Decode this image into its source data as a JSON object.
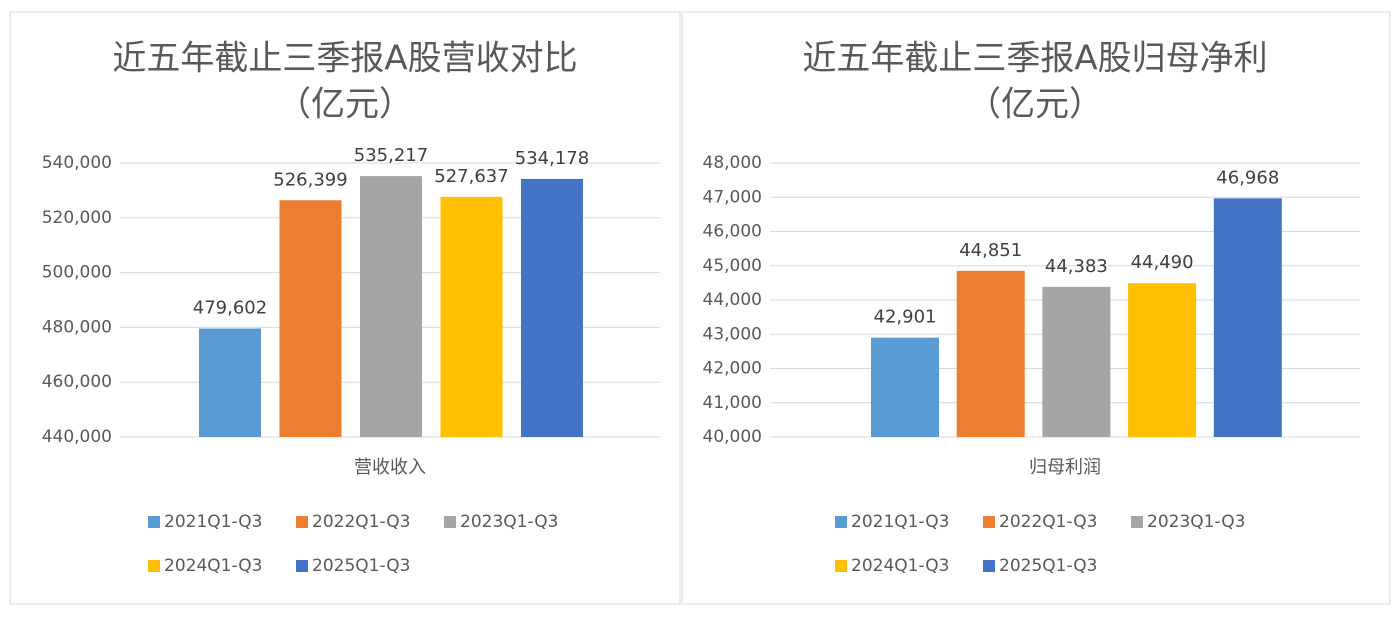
{
  "chart_data": [
    {
      "type": "bar",
      "title": "近五年截止三季报A股营收对比",
      "subtitle": "（亿元）",
      "categories": [
        "营收收入"
      ],
      "series": [
        {
          "name": "2021Q1-Q3",
          "color": "#5b9bd5",
          "values": [
            479602
          ],
          "value_labels": [
            "479,602"
          ]
        },
        {
          "name": "2022Q1-Q3",
          "color": "#ed7d31",
          "values": [
            526399
          ],
          "value_labels": [
            "526,399"
          ]
        },
        {
          "name": "2023Q1-Q3",
          "color": "#a5a5a5",
          "values": [
            535217
          ],
          "value_labels": [
            "535,217"
          ]
        },
        {
          "name": "2024Q1-Q3",
          "color": "#ffc000",
          "values": [
            527637
          ],
          "value_labels": [
            "527,637"
          ]
        },
        {
          "name": "2025Q1-Q3",
          "color": "#4472c4",
          "values": [
            534178
          ],
          "value_labels": [
            "534,178"
          ]
        }
      ],
      "ylim": [
        440000,
        540000
      ],
      "yticks": [
        {
          "value": 440000,
          "label": "440,000"
        },
        {
          "value": 460000,
          "label": "460,000"
        },
        {
          "value": 480000,
          "label": "480,000"
        },
        {
          "value": 500000,
          "label": "500,000"
        },
        {
          "value": 520000,
          "label": "520,000"
        },
        {
          "value": 540000,
          "label": "540,000"
        }
      ],
      "grid": true,
      "legend": "bottom"
    },
    {
      "type": "bar",
      "title": "近五年截止三季报A股归母净利",
      "subtitle": "（亿元）",
      "categories": [
        "归母利润"
      ],
      "series": [
        {
          "name": "2021Q1-Q3",
          "color": "#5b9bd5",
          "values": [
            42901
          ],
          "value_labels": [
            "42,901"
          ]
        },
        {
          "name": "2022Q1-Q3",
          "color": "#ed7d31",
          "values": [
            44851
          ],
          "value_labels": [
            "44,851"
          ]
        },
        {
          "name": "2023Q1-Q3",
          "color": "#a5a5a5",
          "values": [
            44383
          ],
          "value_labels": [
            "44,383"
          ]
        },
        {
          "name": "2024Q1-Q3",
          "color": "#ffc000",
          "values": [
            44490
          ],
          "value_labels": [
            "44,490"
          ]
        },
        {
          "name": "2025Q1-Q3",
          "color": "#4472c4",
          "values": [
            46968
          ],
          "value_labels": [
            "46,968"
          ]
        }
      ],
      "ylim": [
        40000,
        48000
      ],
      "yticks": [
        {
          "value": 40000,
          "label": "40,000"
        },
        {
          "value": 41000,
          "label": "41,000"
        },
        {
          "value": 42000,
          "label": "42,000"
        },
        {
          "value": 43000,
          "label": "43,000"
        },
        {
          "value": 44000,
          "label": "44,000"
        },
        {
          "value": 45000,
          "label": "45,000"
        },
        {
          "value": 46000,
          "label": "46,000"
        },
        {
          "value": 47000,
          "label": "47,000"
        },
        {
          "value": 48000,
          "label": "48,000"
        }
      ],
      "grid": true,
      "legend": "bottom"
    }
  ]
}
